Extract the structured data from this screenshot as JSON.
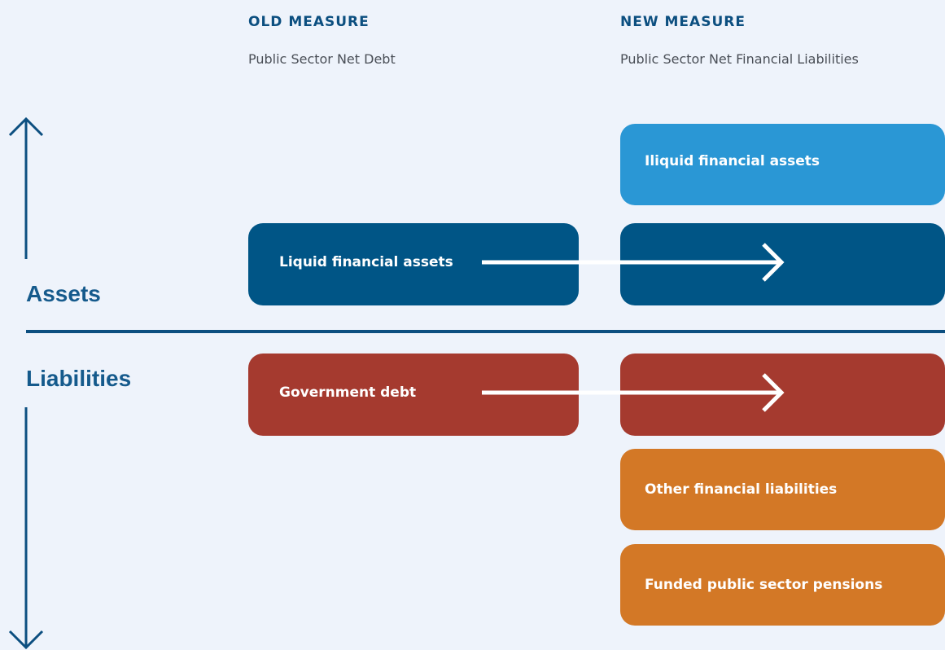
{
  "columns": [
    {
      "heading": "OLD MEASURE",
      "subheading": "Public Sector Net Debt"
    },
    {
      "heading": "NEW MEASURE",
      "subheading": "Public Sector Net Financial Liabilities"
    }
  ],
  "axis": {
    "upper": "Assets",
    "lower": "Liabilities"
  },
  "boxes": [
    {
      "label": "Iliquid financial assets"
    },
    {
      "label": "Liquid financial assets"
    },
    {
      "label": "Government debt"
    },
    {
      "label": "Other financial liabilities"
    },
    {
      "label": "Funded public sector pensions"
    }
  ]
}
